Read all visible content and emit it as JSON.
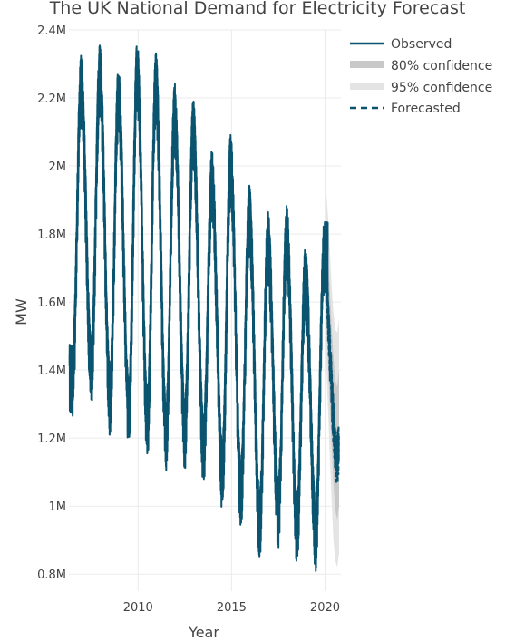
{
  "chart_data": {
    "type": "line",
    "title": "The UK National Demand for Electricity Forecast",
    "xlabel": "Year",
    "ylabel": "MW",
    "xlim": [
      2006.3,
      2020.85
    ],
    "ylim": [
      750000,
      2400000
    ],
    "x_ticks": [
      2010,
      2015,
      2020
    ],
    "x_tick_labels": [
      "2010",
      "2015",
      "2020"
    ],
    "y_ticks": [
      800000,
      1000000,
      1200000,
      1400000,
      1600000,
      1800000,
      2000000,
      2200000,
      2400000
    ],
    "y_tick_labels": [
      "0.8M",
      "1M",
      "1.2M",
      "1.4M",
      "1.6M",
      "1.8M",
      "2M",
      "2.2M",
      "2.4M"
    ],
    "grid": true,
    "legend_position": "top-right",
    "observed": {
      "name": "Observed",
      "color": "#0b5470",
      "x_start": 2006.33,
      "x_end": 2020.15,
      "winter_peaks": [
        [
          2006.95,
          2280000
        ],
        [
          2007.95,
          2310000
        ],
        [
          2008.95,
          2250000
        ],
        [
          2009.95,
          2320000
        ],
        [
          2010.95,
          2290000
        ],
        [
          2011.95,
          2200000
        ],
        [
          2012.95,
          2150000
        ],
        [
          2013.95,
          2000000
        ],
        [
          2014.95,
          2050000
        ],
        [
          2015.95,
          1900000
        ],
        [
          2016.95,
          1820000
        ],
        [
          2017.95,
          1840000
        ],
        [
          2018.95,
          1720000
        ],
        [
          2019.95,
          1790000
        ]
      ],
      "summer_lows": [
        [
          2006.5,
          1430000
        ],
        [
          2007.5,
          1450000
        ],
        [
          2008.5,
          1370000
        ],
        [
          2009.5,
          1330000
        ],
        [
          2010.5,
          1300000
        ],
        [
          2011.5,
          1260000
        ],
        [
          2012.5,
          1270000
        ],
        [
          2013.5,
          1220000
        ],
        [
          2014.5,
          1150000
        ],
        [
          2015.5,
          1090000
        ],
        [
          2016.5,
          1000000
        ],
        [
          2017.5,
          1040000
        ],
        [
          2018.5,
          990000
        ],
        [
          2019.5,
          970000
        ]
      ],
      "daily_spread": 150000
    },
    "forecast": {
      "name": "Forecasted",
      "color": "#0b5470",
      "x": [
        2020.05,
        2020.15,
        2020.25,
        2020.35,
        2020.45,
        2020.55,
        2020.65,
        2020.75
      ],
      "y": [
        1740000,
        1620000,
        1500000,
        1390000,
        1290000,
        1200000,
        1170000,
        1230000
      ],
      "daily_spread": 130000,
      "ci80": {
        "name": "80% confidence",
        "color": "#c8c8c8",
        "lower": [
          1560000,
          1430000,
          1300000,
          1180000,
          1070000,
          990000,
          960000,
          1000000
        ],
        "upper": [
          1850000,
          1760000,
          1640000,
          1530000,
          1440000,
          1370000,
          1350000,
          1400000
        ]
      },
      "ci95": {
        "name": "95% confidence",
        "color": "#e4e4e4",
        "lower": [
          1440000,
          1300000,
          1150000,
          1020000,
          900000,
          840000,
          820000,
          860000
        ],
        "upper": [
          1940000,
          1860000,
          1760000,
          1650000,
          1570000,
          1520000,
          1510000,
          1550000
        ]
      }
    }
  }
}
